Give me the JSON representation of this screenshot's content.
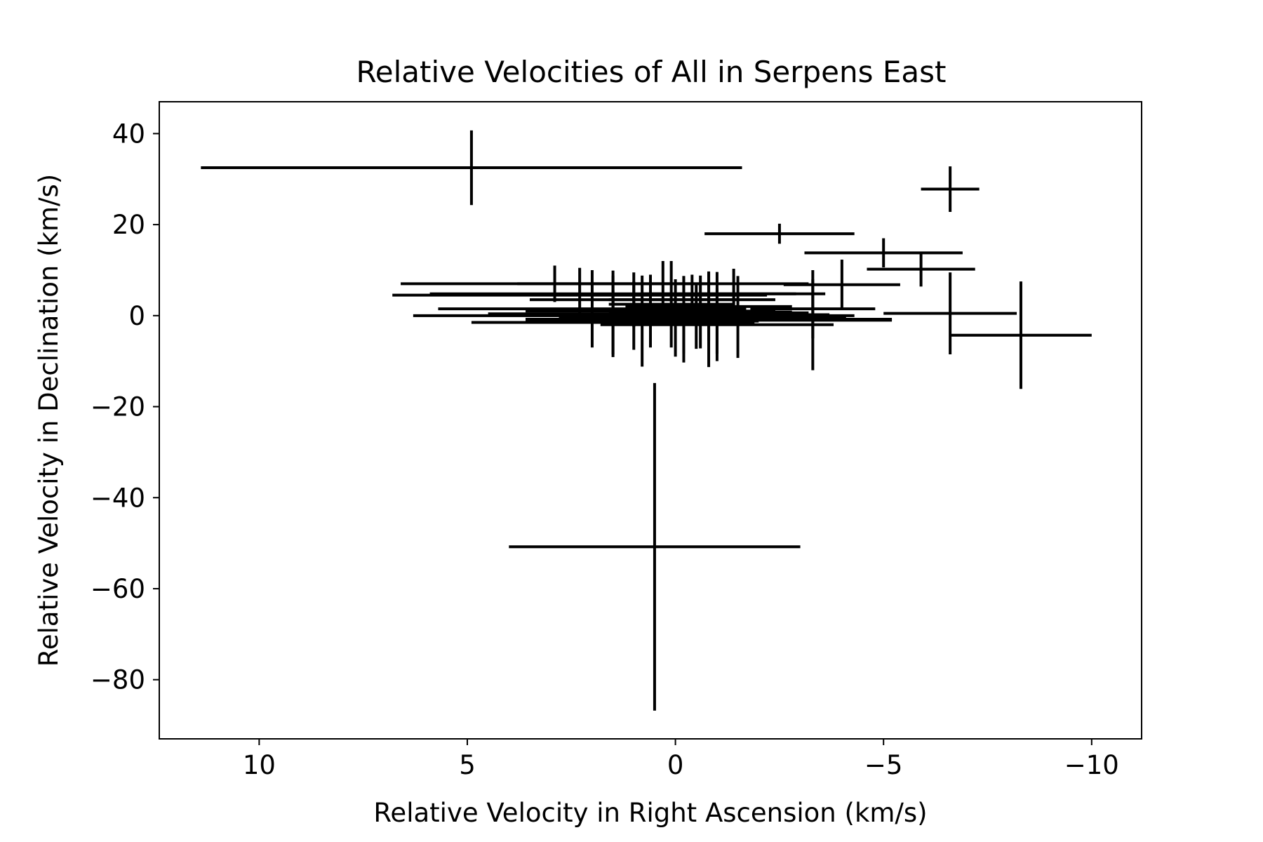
{
  "chart_data": {
    "type": "scatter",
    "title": "Relative Velocities of All in Serpens East",
    "xlabel": "Relative Velocity in Right Ascension (km/s)",
    "ylabel": "Relative Velocity in Declination (km/s)",
    "xlim": [
      12.4,
      -11.2
    ],
    "ylim": [
      -93,
      47
    ],
    "x_reversed": true,
    "grid": false,
    "x_ticks": [
      {
        "value": 10,
        "label": "10"
      },
      {
        "value": 5,
        "label": "5"
      },
      {
        "value": 0,
        "label": "0"
      },
      {
        "value": -5,
        "label": "−5"
      },
      {
        "value": -10,
        "label": "−10"
      }
    ],
    "y_ticks": [
      {
        "value": 40,
        "label": "40"
      },
      {
        "value": 20,
        "label": "20"
      },
      {
        "value": 0,
        "label": "0"
      },
      {
        "value": -20,
        "label": "−20"
      },
      {
        "value": -40,
        "label": "−40"
      },
      {
        "value": -60,
        "label": "−60"
      },
      {
        "value": -80,
        "label": "−80"
      }
    ],
    "marker_color": "#000000",
    "series": [
      {
        "points": [
          {
            "x": 4.9,
            "y": 32.5,
            "xerr": 6.5,
            "yerr": 8.2
          },
          {
            "x": -6.6,
            "y": 27.8,
            "xerr": 0.7,
            "yerr": 5.0
          },
          {
            "x": -2.5,
            "y": 18.0,
            "xerr": 1.8,
            "yerr": 2.2
          },
          {
            "x": -5.0,
            "y": 13.8,
            "xerr": 1.9,
            "yerr": 3.2
          },
          {
            "x": -5.9,
            "y": 10.2,
            "xerr": 1.3,
            "yerr": 3.8
          },
          {
            "x": -4.0,
            "y": 6.8,
            "xerr": 1.4,
            "yerr": 5.5
          },
          {
            "x": -6.6,
            "y": 0.5,
            "xerr": 1.6,
            "yerr": 9.0
          },
          {
            "x": -8.3,
            "y": -4.3,
            "xerr": 1.7,
            "yerr": 11.8
          },
          {
            "x": 0.5,
            "y": -50.8,
            "xerr": 3.5,
            "yerr": 36.0
          },
          {
            "x": 2.9,
            "y": 7.0,
            "xerr": 3.7,
            "yerr": 4.0
          },
          {
            "x": 0.3,
            "y": 7.0,
            "xerr": 3.5,
            "yerr": 5.0
          },
          {
            "x": 2.3,
            "y": 4.5,
            "xerr": 4.5,
            "yerr": 6.0
          },
          {
            "x": 1.5,
            "y": 4.8,
            "xerr": 4.4,
            "yerr": 4.0
          },
          {
            "x": -1.4,
            "y": 4.8,
            "xerr": 2.2,
            "yerr": 5.5
          },
          {
            "x": 1.0,
            "y": 3.5,
            "xerr": 2.5,
            "yerr": 6.0
          },
          {
            "x": -0.4,
            "y": 3.5,
            "xerr": 2.0,
            "yerr": 5.5
          },
          {
            "x": 0.1,
            "y": 2.5,
            "xerr": 1.5,
            "yerr": 9.5
          },
          {
            "x": -0.8,
            "y": 2.0,
            "xerr": 2.0,
            "yerr": 7.5
          },
          {
            "x": 2.0,
            "y": 1.5,
            "xerr": 3.7,
            "yerr": 8.5
          },
          {
            "x": -3.3,
            "y": 1.5,
            "xerr": 1.5,
            "yerr": 6.5
          },
          {
            "x": 0.6,
            "y": 1.0,
            "xerr": 3.0,
            "yerr": 8.0
          },
          {
            "x": -1.0,
            "y": 0.6,
            "xerr": 2.2,
            "yerr": 9.0
          },
          {
            "x": 1.5,
            "y": 0.4,
            "xerr": 3.0,
            "yerr": 9.5
          },
          {
            "x": 1.0,
            "y": 0.0,
            "xerr": 5.3,
            "yerr": 7.5
          },
          {
            "x": -0.2,
            "y": 0.2,
            "xerr": 3.5,
            "yerr": 8.5
          },
          {
            "x": -0.5,
            "y": -0.3,
            "xerr": 3.3,
            "yerr": 7.0
          },
          {
            "x": 0.0,
            "y": -0.5,
            "xerr": 2.8,
            "yerr": 8.5
          },
          {
            "x": -1.5,
            "y": -0.3,
            "xerr": 2.6,
            "yerr": 9.0
          },
          {
            "x": -0.8,
            "y": -0.8,
            "xerr": 4.4,
            "yerr": 10.5
          },
          {
            "x": -3.3,
            "y": -1.0,
            "xerr": 1.9,
            "yerr": 11.0
          },
          {
            "x": 1.5,
            "y": -1.5,
            "xerr": 3.4,
            "yerr": 7.0
          },
          {
            "x": -1.0,
            "y": -2.0,
            "xerr": 2.8,
            "yerr": 8.0
          },
          {
            "x": -0.2,
            "y": -0.8,
            "xerr": 3.6,
            "yerr": 9.5
          },
          {
            "x": 0.8,
            "y": -1.2,
            "xerr": 2.8,
            "yerr": 10.0
          },
          {
            "x": -0.6,
            "y": 0.8,
            "xerr": 2.2,
            "yerr": 8.0
          }
        ]
      }
    ]
  }
}
